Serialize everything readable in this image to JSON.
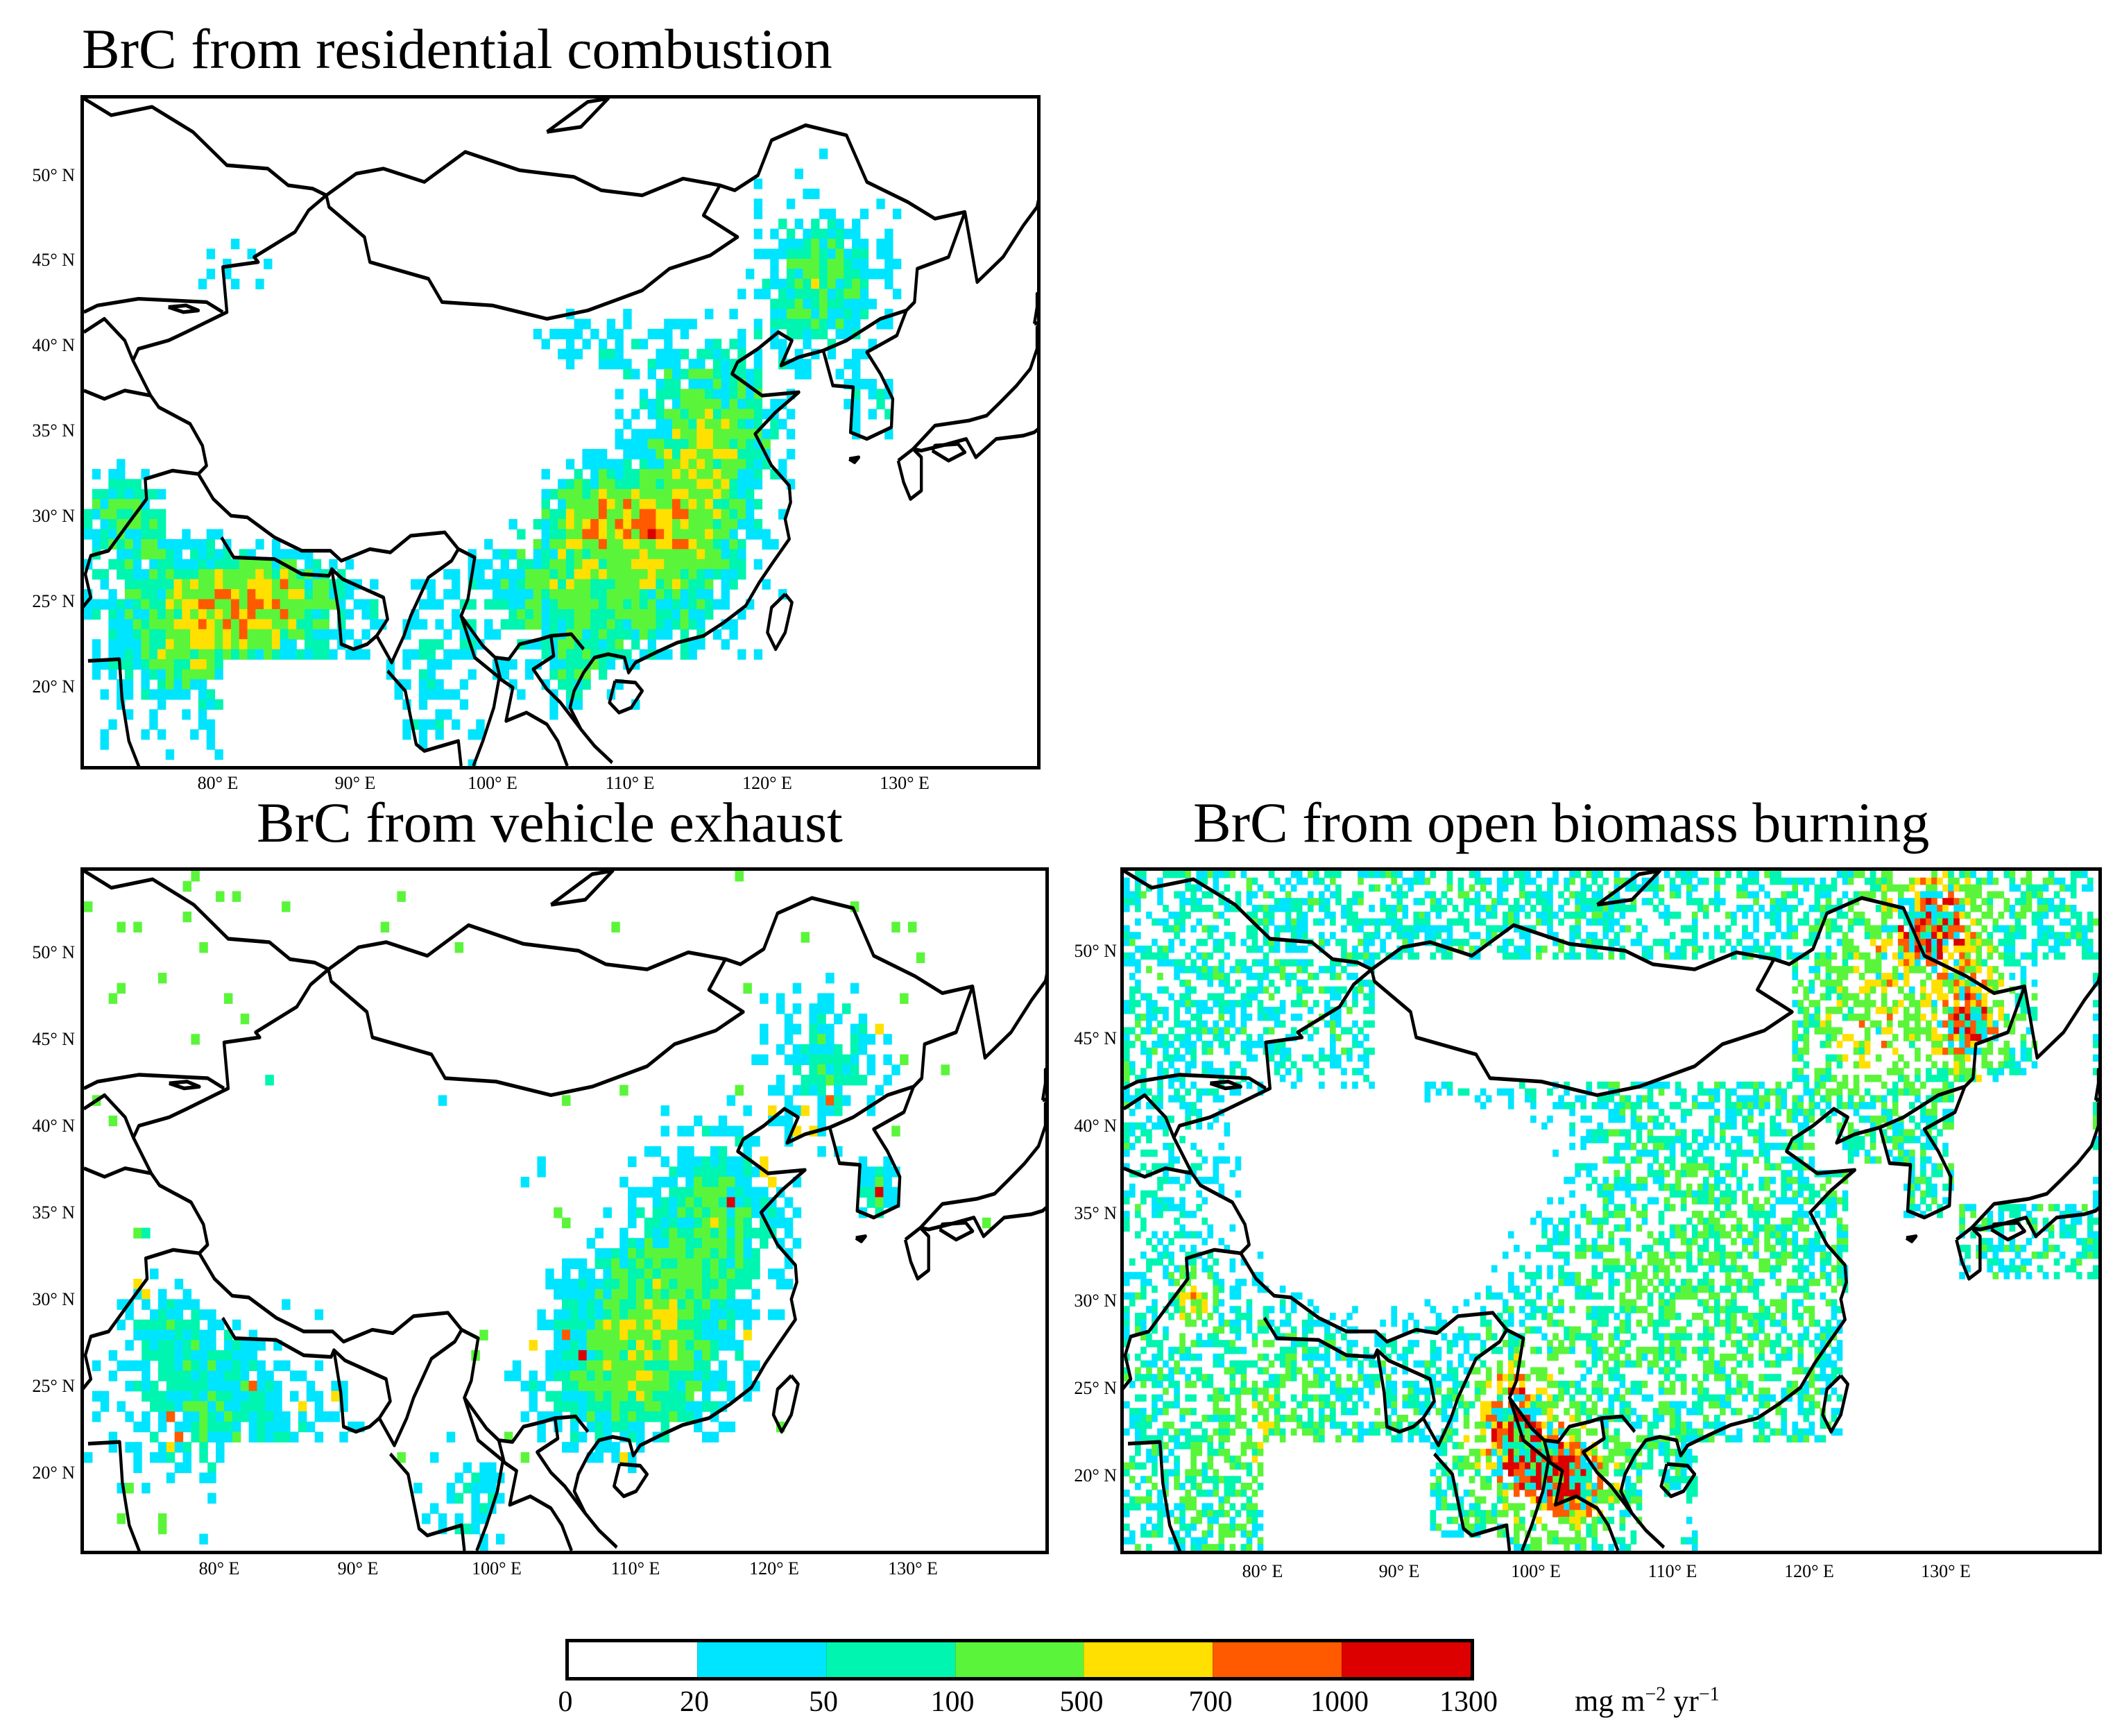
{
  "panels": [
    {
      "title": "BrC from residential combustion",
      "pattern": "residential"
    },
    {
      "title": "BrC from vehicle exhaust",
      "pattern": "vehicle"
    },
    {
      "title": "BrC from open biomass burning",
      "pattern": "biomass"
    }
  ],
  "lat_labels": [
    "50° N",
    "45° N",
    "40° N",
    "35° N",
    "30° N",
    "25° N",
    "20° N"
  ],
  "lon_labels": [
    "80° E",
    "90° E",
    "100° E",
    "110° E",
    "120° E",
    "130° E"
  ],
  "colorbar": {
    "ticks": [
      "0",
      "20",
      "50",
      "100",
      "500",
      "700",
      "1000",
      "1300"
    ],
    "colors": [
      "#ffffff",
      "#00e5ff",
      "#00f5b0",
      "#5af53a",
      "#ffe000",
      "#ff5a00",
      "#dd0000"
    ],
    "unit_base": "mg m",
    "unit_exp1": "−2",
    "unit_mid": " yr",
    "unit_exp2": "−1"
  }
}
